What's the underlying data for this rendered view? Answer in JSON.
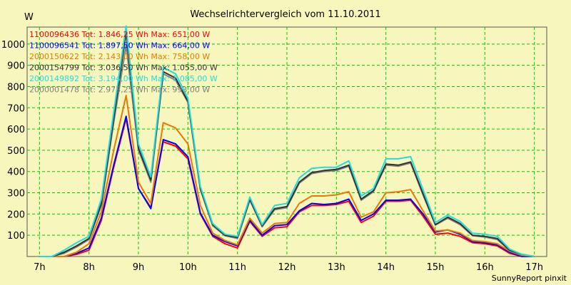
{
  "colors": {
    "background": "#f7f7bd",
    "grid": "#00cc00",
    "plot_border": "#555555"
  },
  "footer": "SunnyReport pinxit",
  "chart_data": {
    "type": "line",
    "title": "Wechselrichtervergleich vom 11.10.2011",
    "ylabel": "W",
    "xlabel": "",
    "xlim": [
      6.75,
      17.25
    ],
    "ylim": [
      0,
      1080
    ],
    "x_ticks": [
      7,
      8,
      9,
      10,
      11,
      12,
      13,
      14,
      15,
      16,
      17
    ],
    "x_tick_labels": [
      "7h",
      "8h",
      "9h",
      "10h",
      "11h",
      "12h",
      "13h",
      "14h",
      "15h",
      "16h",
      "17h"
    ],
    "y_ticks": [
      100,
      200,
      300,
      400,
      500,
      600,
      700,
      800,
      900,
      1000
    ],
    "y_tick_labels": [
      "100",
      "200",
      "300",
      "400",
      "500",
      "600",
      "700",
      "800",
      "900",
      "1000"
    ],
    "grid": true,
    "x": [
      7.0,
      7.25,
      7.5,
      7.75,
      8.0,
      8.25,
      8.5,
      8.75,
      9.0,
      9.25,
      9.5,
      9.75,
      10.0,
      10.25,
      10.5,
      10.75,
      11.0,
      11.25,
      11.5,
      11.75,
      12.0,
      12.25,
      12.5,
      12.75,
      13.0,
      13.25,
      13.5,
      13.75,
      14.0,
      14.25,
      14.5,
      14.75,
      15.0,
      15.25,
      15.5,
      15.75,
      16.0,
      16.25,
      16.5,
      16.75,
      17.0
    ],
    "series": [
      {
        "name": "1100096436",
        "legend": "1100096436 Tot: 1.846,25 Wh Max: 651,00 W",
        "color": "#ff0000",
        "values": [
          0,
          0,
          0,
          10,
          30,
          170,
          420,
          650,
          320,
          230,
          540,
          520,
          460,
          200,
          95,
          60,
          40,
          165,
          95,
          135,
          140,
          210,
          240,
          240,
          245,
          260,
          160,
          190,
          260,
          260,
          265,
          190,
          105,
          110,
          95,
          65,
          60,
          50,
          15,
          0,
          0
        ]
      },
      {
        "name": "1100096541",
        "legend": "1100096541 Tot: 1.897,50 Wh Max: 664,00 W",
        "color": "#0000ff",
        "values": [
          0,
          0,
          0,
          15,
          40,
          180,
          430,
          660,
          320,
          225,
          550,
          530,
          470,
          205,
          100,
          70,
          50,
          170,
          100,
          145,
          150,
          215,
          250,
          245,
          250,
          270,
          170,
          200,
          265,
          265,
          270,
          200,
          115,
          125,
          105,
          70,
          65,
          55,
          20,
          0,
          0
        ]
      },
      {
        "name": "2000150622",
        "legend": "2000150622 Tot: 2.143,00 Wh Max: 758,00 W",
        "color": "#ee7700",
        "values": [
          0,
          0,
          0,
          20,
          60,
          210,
          500,
          758,
          350,
          250,
          630,
          605,
          530,
          240,
          110,
          75,
          55,
          180,
          110,
          155,
          160,
          250,
          285,
          285,
          290,
          305,
          185,
          210,
          300,
          305,
          315,
          215,
          120,
          125,
          110,
          75,
          70,
          60,
          25,
          5,
          0
        ]
      },
      {
        "name": "2000154799",
        "legend": "2000154799 Tot: 3.036,50 Wh Max: 1.055,00 W",
        "color": "#333333",
        "values": [
          0,
          0,
          20,
          50,
          85,
          250,
          650,
          1055,
          510,
          360,
          870,
          840,
          730,
          320,
          150,
          100,
          90,
          270,
          145,
          225,
          235,
          350,
          395,
          405,
          410,
          430,
          270,
          310,
          435,
          430,
          445,
          295,
          150,
          185,
          155,
          100,
          95,
          85,
          30,
          10,
          0
        ]
      },
      {
        "name": "2000149892",
        "legend": "2000149892 Tot: 3.194,00 Wh Max: 1.085,00 W",
        "color": "#22dddd",
        "values": [
          0,
          0,
          30,
          65,
          95,
          270,
          680,
          1085,
          530,
          375,
          890,
          860,
          745,
          330,
          155,
          105,
          95,
          280,
          150,
          240,
          250,
          370,
          415,
          420,
          420,
          450,
          285,
          320,
          460,
          460,
          470,
          315,
          160,
          195,
          165,
          110,
          105,
          95,
          35,
          10,
          0
        ]
      },
      {
        "name": "2000001478",
        "legend": "2000001478 Tot: 2.973,25 Wh Max: 993,00 W",
        "color": "#808080",
        "values": [
          0,
          0,
          15,
          45,
          80,
          240,
          630,
          993,
          500,
          350,
          860,
          830,
          725,
          315,
          145,
          98,
          85,
          265,
          140,
          220,
          230,
          345,
          390,
          400,
          405,
          425,
          265,
          305,
          430,
          425,
          440,
          290,
          148,
          180,
          150,
          98,
          92,
          80,
          28,
          8,
          0
        ]
      }
    ],
    "draw_order": [
      0,
      1,
      2,
      5,
      3,
      4
    ]
  }
}
